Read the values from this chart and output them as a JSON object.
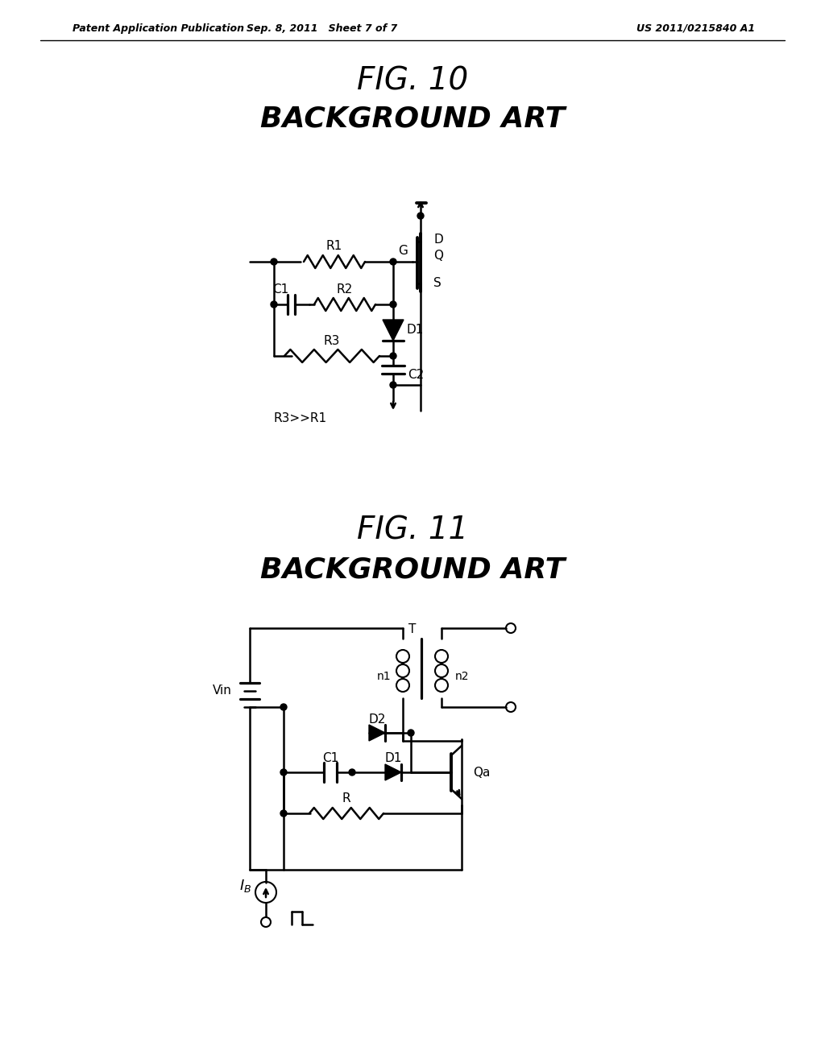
{
  "header_left": "Patent Application Publication",
  "header_mid": "Sep. 8, 2011   Sheet 7 of 7",
  "header_right": "US 2011/0215840 A1",
  "fig10_label": "FIG. 10",
  "fig10_subtitle": "BACKGROUND ART",
  "fig11_label": "FIG. 11",
  "fig11_subtitle": "BACKGROUND ART",
  "note_fig10": "R3>>R1",
  "background_color": "#ffffff",
  "line_color": "#000000",
  "line_width": 1.8
}
